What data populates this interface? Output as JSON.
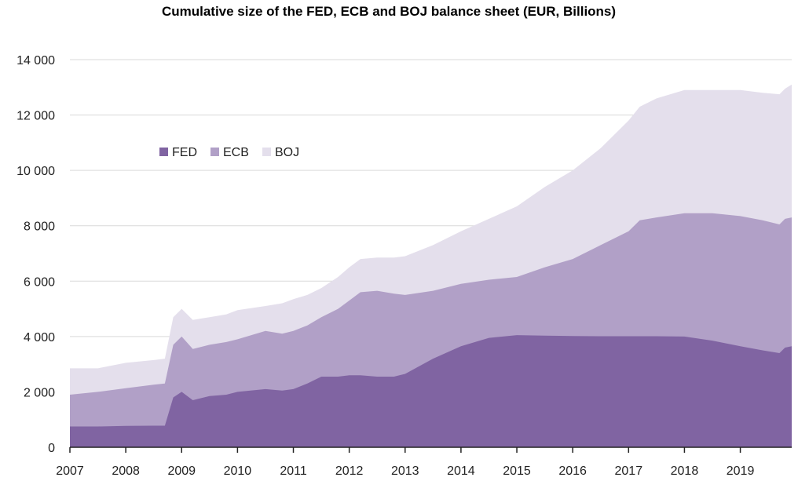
{
  "chart_data": {
    "type": "area",
    "stacked": true,
    "title": "Cumulative size of the FED, ECB and BOJ balance sheet (EUR, Billions)",
    "xlabel": "",
    "ylabel": "",
    "xlim": [
      2007.0,
      2019.92
    ],
    "ylim": [
      0,
      14000
    ],
    "yticks": [
      0,
      2000,
      4000,
      6000,
      8000,
      10000,
      12000,
      14000
    ],
    "ytick_labels": [
      "0",
      "2 000",
      "4 000",
      "6 000",
      "8 000",
      "10 000",
      "12 000",
      "14 000"
    ],
    "xticks": [
      2007,
      2008,
      2009,
      2010,
      2011,
      2012,
      2013,
      2014,
      2015,
      2016,
      2017,
      2018,
      2019
    ],
    "xtick_labels": [
      "2007",
      "2008",
      "2009",
      "2010",
      "2011",
      "2012",
      "2013",
      "2014",
      "2015",
      "2016",
      "2017",
      "2018",
      "2019"
    ],
    "grid": true,
    "legend_position": "upper-left",
    "x": [
      2007.0,
      2007.5,
      2008.0,
      2008.5,
      2008.7,
      2008.85,
      2009.0,
      2009.2,
      2009.5,
      2009.8,
      2010.0,
      2010.5,
      2010.8,
      2011.0,
      2011.25,
      2011.5,
      2011.8,
      2012.0,
      2012.2,
      2012.5,
      2012.8,
      2013.0,
      2013.5,
      2014.0,
      2014.5,
      2015.0,
      2015.5,
      2016.0,
      2016.5,
      2017.0,
      2017.2,
      2017.5,
      2018.0,
      2018.5,
      2019.0,
      2019.4,
      2019.7,
      2019.8,
      2019.92
    ],
    "series": [
      {
        "name": "FED",
        "color": "#8064a2",
        "values": [
          750,
          750,
          770,
          780,
          780,
          1800,
          2000,
          1700,
          1850,
          1900,
          2000,
          2100,
          2050,
          2100,
          2300,
          2550,
          2550,
          2600,
          2600,
          2550,
          2550,
          2650,
          3200,
          3650,
          3950,
          4050,
          4030,
          4020,
          4010,
          4010,
          4010,
          4010,
          4000,
          3850,
          3650,
          3500,
          3400,
          3600,
          3650
        ]
      },
      {
        "name": "ECB",
        "color": "#b1a0c7",
        "values": [
          1900,
          2000,
          2130,
          2260,
          2300,
          3700,
          4000,
          3550,
          3700,
          3800,
          3900,
          4200,
          4100,
          4200,
          4400,
          4700,
          5000,
          5300,
          5600,
          5650,
          5550,
          5500,
          5650,
          5900,
          6050,
          6150,
          6500,
          6800,
          7300,
          7800,
          8200,
          8300,
          8450,
          8450,
          8350,
          8200,
          8050,
          8250,
          8300
        ]
      },
      {
        "name": "BOJ",
        "color": "#e4dfec",
        "values": [
          2850,
          2850,
          3050,
          3150,
          3200,
          4700,
          5000,
          4600,
          4700,
          4800,
          4950,
          5100,
          5200,
          5350,
          5500,
          5750,
          6150,
          6500,
          6800,
          6850,
          6850,
          6900,
          7300,
          7800,
          8250,
          8700,
          9400,
          10000,
          10800,
          11800,
          12300,
          12600,
          12900,
          12900,
          12900,
          12800,
          12750,
          12950,
          13100
        ]
      }
    ]
  }
}
